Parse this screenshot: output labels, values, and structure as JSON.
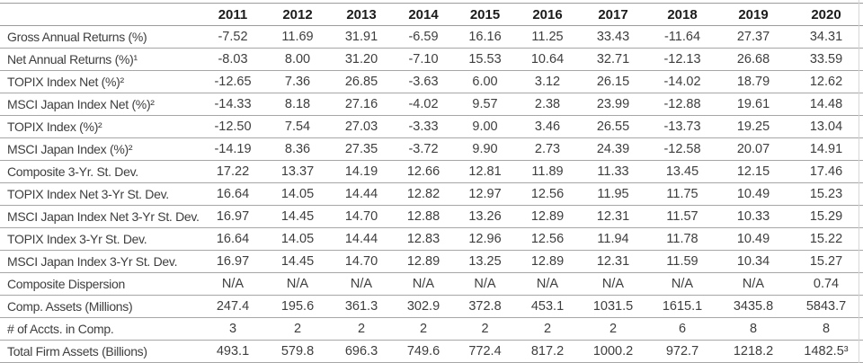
{
  "table": {
    "corner_label": "",
    "years": [
      "2011",
      "2012",
      "2013",
      "2014",
      "2015",
      "2016",
      "2017",
      "2018",
      "2019",
      "2020"
    ],
    "rows": [
      {
        "label": "Gross Annual Returns (%)",
        "values": [
          "-7.52",
          "11.69",
          "31.91",
          "-6.59",
          "16.16",
          "11.25",
          "33.43",
          "-11.64",
          "27.37",
          "34.31"
        ]
      },
      {
        "label": "Net Annual Returns (%)¹",
        "values": [
          "-8.03",
          "8.00",
          "31.20",
          "-7.10",
          "15.53",
          "10.64",
          "32.71",
          "-12.13",
          "26.68",
          "33.59"
        ]
      },
      {
        "label": "TOPIX Index Net (%)²",
        "values": [
          "-12.65",
          "7.36",
          "26.85",
          "-3.63",
          "6.00",
          "3.12",
          "26.15",
          "-14.02",
          "18.79",
          "12.62"
        ]
      },
      {
        "label": "MSCI Japan Index Net (%)²",
        "values": [
          "-14.33",
          "8.18",
          "27.16",
          "-4.02",
          "9.57",
          "2.38",
          "23.99",
          "-12.88",
          "19.61",
          "14.48"
        ]
      },
      {
        "label": "TOPIX Index (%)²",
        "values": [
          "-12.50",
          "7.54",
          "27.03",
          "-3.33",
          "9.00",
          "3.46",
          "26.55",
          "-13.73",
          "19.25",
          "13.04"
        ]
      },
      {
        "label": "MSCI Japan Index (%)²",
        "values": [
          "-14.19",
          "8.36",
          "27.35",
          "-3.72",
          "9.90",
          "2.73",
          "24.39",
          "-12.58",
          "20.07",
          "14.91"
        ]
      },
      {
        "label": "Composite 3-Yr. St. Dev.",
        "values": [
          "17.22",
          "13.37",
          "14.19",
          "12.66",
          "12.81",
          "11.89",
          "11.33",
          "13.45",
          "12.15",
          "17.46"
        ]
      },
      {
        "label": "TOPIX Index Net 3-Yr St. Dev.",
        "values": [
          "16.64",
          "14.05",
          "14.44",
          "12.82",
          "12.97",
          "12.56",
          "11.95",
          "11.75",
          "10.49",
          "15.23"
        ]
      },
      {
        "label": "MSCI Japan Index Net 3-Yr St. Dev.",
        "values": [
          "16.97",
          "14.45",
          "14.70",
          "12.88",
          "13.26",
          "12.89",
          "12.31",
          "11.57",
          "10.33",
          "15.29"
        ]
      },
      {
        "label": "TOPIX Index 3-Yr St. Dev.",
        "values": [
          "16.64",
          "14.05",
          "14.44",
          "12.83",
          "12.96",
          "12.56",
          "11.94",
          "11.78",
          "10.49",
          "15.22"
        ]
      },
      {
        "label": "MSCI Japan Index 3-Yr St. Dev.",
        "values": [
          "16.97",
          "14.45",
          "14.70",
          "12.89",
          "13.25",
          "12.89",
          "12.31",
          "11.59",
          "10.34",
          "15.27"
        ]
      },
      {
        "label": "Composite Dispersion",
        "values": [
          "N/A",
          "N/A",
          "N/A",
          "N/A",
          "N/A",
          "N/A",
          "N/A",
          "N/A",
          "N/A",
          "0.74"
        ]
      },
      {
        "label": "Comp. Assets (Millions)",
        "values": [
          "247.4",
          "195.6",
          "361.3",
          "302.9",
          "372.8",
          "453.1",
          "1031.5",
          "1615.1",
          "3435.8",
          "5843.7"
        ]
      },
      {
        "label": "# of Accts. in Comp.",
        "values": [
          "3",
          "2",
          "2",
          "2",
          "2",
          "2",
          "2",
          "6",
          "8",
          "8"
        ]
      },
      {
        "label": "Total Firm Assets (Billions)",
        "values": [
          "493.1",
          "579.8",
          "696.3",
          "749.6",
          "772.4",
          "817.2",
          "1000.2",
          "972.7",
          "1218.2",
          "1482.5³"
        ]
      }
    ]
  }
}
